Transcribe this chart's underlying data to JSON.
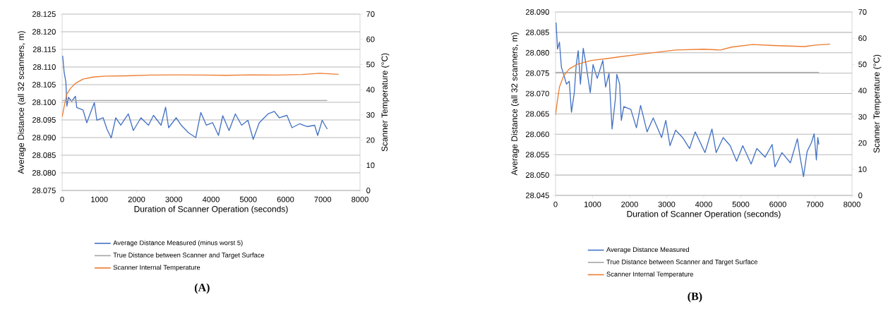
{
  "chart_data": [
    {
      "type": "line",
      "title": "(A)",
      "xlabel": "Duration of Scanner Operation (seconds)",
      "ylabel": "Average Distance (all 32 scanners, m)",
      "y2label": "Scanner Temperature (°C)",
      "xlim": [
        0,
        8000
      ],
      "xticks": [
        0,
        1000,
        2000,
        3000,
        4000,
        5000,
        6000,
        7000,
        8000
      ],
      "ylim": [
        28.075,
        28.125
      ],
      "yticks": [
        28.075,
        {
          "value": 28.08,
          "label": "28.080"
        },
        28.085,
        {
          "value": 28.09,
          "label": "28.090"
        },
        28.095,
        {
          "value": 28.1,
          "label": "28.100"
        },
        28.105,
        {
          "value": 28.11,
          "label": "28.110"
        },
        28.115,
        {
          "value": 28.12,
          "label": "28.120"
        },
        28.125
      ],
      "y2lim": [
        0,
        70
      ],
      "y2ticks": [
        0,
        10,
        20,
        30,
        40,
        50,
        60,
        70
      ],
      "grid": "y",
      "legend": "bottom",
      "series": [
        {
          "name": "Average Distance Measured (minus worst 5)",
          "color": "#4472c4",
          "x": [
            14,
            54,
            101,
            128,
            169,
            257,
            358,
            392,
            561,
            663,
            764,
            865,
            933,
            1102,
            1204,
            1318,
            1440,
            1575,
            1778,
            1913,
            2116,
            2319,
            2454,
            2657,
            2779,
            2860,
            3063,
            3198,
            3401,
            3590,
            3725,
            3874,
            4043,
            4199,
            4314,
            4483,
            4652,
            4821,
            4990,
            5132,
            5294,
            5531,
            5700,
            5835,
            6038,
            6173,
            6376,
            6579,
            6782,
            6863,
            6984,
            7120
          ],
          "values": [
            28.1132,
            28.1085,
            28.1057,
            28.0989,
            28.1014,
            28.1003,
            28.1017,
            28.0985,
            28.0978,
            28.0942,
            28.0971,
            28.0999,
            28.0949,
            28.0956,
            28.0924,
            28.0899,
            28.0956,
            28.0935,
            28.0967,
            28.092,
            28.0956,
            28.0935,
            28.0963,
            28.0935,
            28.0986,
            28.0928,
            28.0956,
            28.0935,
            28.0913,
            28.09,
            28.0971,
            28.0935,
            28.0942,
            28.0906,
            28.0962,
            28.092,
            28.0967,
            28.0935,
            28.0949,
            28.0895,
            28.0942,
            28.0967,
            28.0974,
            28.0956,
            28.0963,
            28.0928,
            28.0939,
            28.0931,
            28.0935,
            28.0906,
            28.0949,
            28.0924
          ]
        },
        {
          "name": "True Distance between Scanner and Target Surface",
          "color": "#a5a5a5",
          "x": [
            0,
            7120
          ],
          "values": [
            28.1005,
            28.1005
          ]
        },
        {
          "name": "Scanner Internal Temperature",
          "color": "#ed7d31",
          "axis": "y2",
          "x": [
            0,
            54,
            122,
            223,
            358,
            561,
            832,
            1170,
            1711,
            2387,
            3063,
            3739,
            4415,
            5091,
            5767,
            6444,
            6917,
            7424
          ],
          "values": [
            29.2,
            33.2,
            38.1,
            40.5,
            42.5,
            44.2,
            45.0,
            45.4,
            45.5,
            45.8,
            45.9,
            45.8,
            45.7,
            45.9,
            45.8,
            46.0,
            46.5,
            46.1
          ]
        }
      ]
    },
    {
      "type": "line",
      "title": "(B)",
      "xlabel": "Duration of Scanner Operation (seconds)",
      "ylabel": "Average Distance (all 32 scanners, m)",
      "y2label": "Scanner Temperature (°C)",
      "xlim": [
        0,
        8000
      ],
      "xticks": [
        0,
        1000,
        2000,
        3000,
        4000,
        5000,
        6000,
        7000,
        8000
      ],
      "ylim": [
        28.045,
        28.09
      ],
      "yticks": [
        28.045,
        {
          "value": 28.05,
          "label": "28.050"
        },
        28.055,
        {
          "value": 28.06,
          "label": "28.060"
        },
        28.065,
        {
          "value": 28.07,
          "label": "28.070"
        },
        28.075,
        {
          "value": 28.08,
          "label": "28.080"
        },
        28.085,
        {
          "value": 28.09,
          "label": "28.090"
        }
      ],
      "y2lim": [
        0,
        70
      ],
      "y2ticks": [
        0,
        10,
        20,
        30,
        40,
        50,
        60,
        70
      ],
      "grid": "y",
      "legend": "bottom",
      "series": [
        {
          "name": "Average Distance Measured",
          "color": "#4472c4",
          "x": [
            15,
            53,
            106,
            159,
            219,
            295,
            370,
            430,
            506,
            559,
            612,
            672,
            748,
            823,
            937,
            1012,
            1125,
            1276,
            1352,
            1443,
            1526,
            1616,
            1654,
            1730,
            1775,
            1843,
            2032,
            2183,
            2296,
            2470,
            2636,
            2863,
            2976,
            3089,
            3240,
            3429,
            3618,
            3769,
            4033,
            4222,
            4335,
            4524,
            4713,
            4887,
            5053,
            5279,
            5431,
            5657,
            5846,
            5921,
            6110,
            6337,
            6526,
            6601,
            6692,
            6790,
            6903,
            6979,
            7039,
            7077,
            7107
          ],
          "values": [
            28.0874,
            28.0809,
            28.0826,
            28.0764,
            28.0747,
            28.0723,
            28.073,
            28.0654,
            28.0702,
            28.0771,
            28.0805,
            28.0723,
            28.0811,
            28.0771,
            28.0702,
            28.0771,
            28.0737,
            28.0781,
            28.0716,
            28.0749,
            28.0613,
            28.0688,
            28.0747,
            28.0723,
            28.0634,
            28.0668,
            28.0661,
            28.0616,
            28.0671,
            28.0606,
            28.064,
            28.0592,
            28.0634,
            28.0572,
            28.061,
            28.0592,
            28.0565,
            28.0606,
            28.0555,
            28.0613,
            28.0555,
            28.0592,
            28.0572,
            28.0534,
            28.0572,
            28.0527,
            28.0565,
            28.0544,
            28.0575,
            28.052,
            28.0555,
            28.053,
            28.0589,
            28.0544,
            28.0496,
            28.0558,
            28.0579,
            28.0601,
            28.0537,
            28.0592,
            28.0575
          ]
        },
        {
          "name": "True Distance between Scanner and Target Surface",
          "color": "#a5a5a5",
          "x": [
            0,
            7110
          ],
          "values": [
            28.0752,
            28.0752
          ]
        },
        {
          "name": "Scanner Internal Temperature",
          "color": "#ed7d31",
          "axis": "y2",
          "x": [
            0,
            38,
            106,
            219,
            370,
            597,
            974,
            1427,
            1730,
            2485,
            3240,
            3995,
            4448,
            4751,
            5317,
            5884,
            6715,
            7017,
            7409
          ],
          "values": [
            30.7,
            34.9,
            41.4,
            45.6,
            48.3,
            50.1,
            51.5,
            52.3,
            52.9,
            54.2,
            55.5,
            55.8,
            55.5,
            56.6,
            57.6,
            57.2,
            56.8,
            57.4,
            57.7
          ]
        }
      ]
    }
  ]
}
